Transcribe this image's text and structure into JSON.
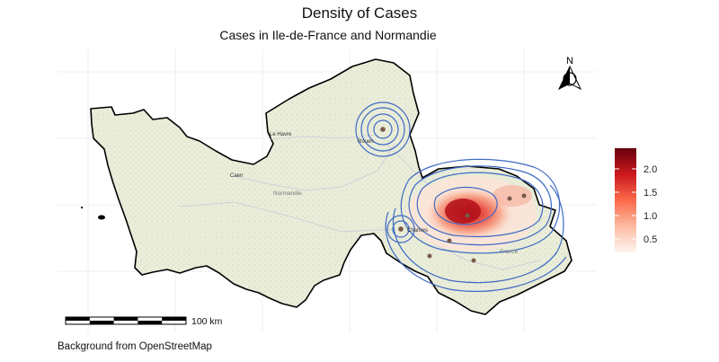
{
  "title": "Density of Cases",
  "subtitle": "Cases in Ile-de-France and Normandie",
  "caption": "Background from OpenStreetMap",
  "scale_bar": {
    "label": "100 km"
  },
  "north_arrow": {
    "label": "N",
    "icon": "north-arrow-icon"
  },
  "legend": {
    "ticks": [
      "2.0",
      "1.5",
      "1.0",
      "0.5"
    ],
    "colors": [
      "#fff5f0",
      "#fcbba1",
      "#fb6a4a",
      "#cb181d",
      "#67000d"
    ]
  },
  "places": {
    "le_havre": "Le Havre",
    "rouen": "Rouen",
    "caen": "Caen",
    "normandie": "Normandie",
    "chartres": "Chartres",
    "ile_de_france": "Ile-de-France",
    "france": "France"
  },
  "colors": {
    "land": "#e9edd9",
    "outline": "#000000",
    "contour": "#3f6ac4",
    "point": "#7a5a4a"
  }
}
